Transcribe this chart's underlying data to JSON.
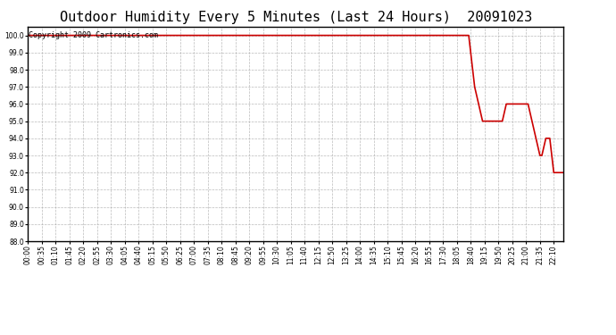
{
  "title": "Outdoor Humidity Every 5 Minutes (Last 24 Hours)  20091023",
  "copyright_text": "Copyright 2009 Cartronics.com",
  "line_color": "#cc0000",
  "bg_color": "#ffffff",
  "plot_bg_color": "#ffffff",
  "grid_color": "#aaaaaa",
  "ylim": [
    88.0,
    100.5
  ],
  "yticks": [
    88.0,
    89.0,
    90.0,
    91.0,
    92.0,
    93.0,
    94.0,
    95.0,
    96.0,
    97.0,
    98.0,
    99.0,
    100.0
  ],
  "title_fontsize": 11,
  "copyright_fontsize": 6,
  "tick_label_fontsize": 5.5,
  "line_width": 1.2,
  "values": [
    100,
    100,
    100,
    100,
    100,
    100,
    100,
    100,
    100,
    100,
    100,
    100,
    100,
    100,
    100,
    100,
    100,
    100,
    100,
    100,
    100,
    100,
    100,
    100,
    100,
    100,
    100,
    100,
    100,
    100,
    100,
    100,
    100,
    100,
    100,
    100,
    100,
    100,
    100,
    100,
    100,
    100,
    100,
    100,
    100,
    100,
    100,
    100,
    100,
    100,
    100,
    100,
    100,
    100,
    100,
    100,
    100,
    100,
    100,
    100,
    100,
    100,
    100,
    100,
    100,
    100,
    100,
    100,
    100,
    100,
    100,
    100,
    100,
    100,
    100,
    100,
    100,
    100,
    100,
    100,
    100,
    100,
    100,
    100,
    100,
    100,
    100,
    100,
    100,
    100,
    100,
    100,
    100,
    100,
    100,
    100,
    100,
    100,
    100,
    100,
    100,
    100,
    100,
    100,
    100,
    100,
    100,
    100,
    100,
    100,
    100,
    100,
    100,
    100,
    100,
    100,
    100,
    100,
    100,
    100,
    100,
    100,
    100,
    100,
    100,
    100,
    100,
    100,
    100,
    100,
    100,
    100,
    100,
    100,
    100,
    100,
    100,
    100,
    100,
    100,
    100,
    100,
    100,
    100,
    100,
    100,
    100,
    100,
    100,
    100,
    100,
    100,
    100,
    100,
    100,
    100,
    100,
    100,
    100,
    100,
    100,
    100,
    100,
    100,
    100,
    100,
    100,
    100,
    100,
    100,
    100,
    100,
    100,
    100,
    100,
    100,
    100,
    100,
    100,
    100,
    100,
    100,
    100,
    100,
    100,
    100,
    100,
    100,
    100,
    100,
    100,
    100,
    100,
    100,
    100,
    100,
    100,
    100,
    100,
    100,
    100,
    100,
    100,
    100,
    100,
    100,
    100,
    100,
    100,
    100,
    100,
    100,
    100,
    100,
    100,
    100,
    100,
    100,
    100,
    100,
    100,
    100,
    100,
    100,
    99,
    98,
    97,
    96.5,
    96,
    95.5,
    95,
    95,
    95,
    95,
    95,
    95,
    95,
    95,
    95,
    95,
    95,
    95.5,
    96,
    96,
    96,
    96,
    96,
    96,
    96,
    96,
    96,
    96,
    96,
    96,
    95.5,
    95,
    94.5,
    94,
    93.5,
    93,
    93,
    93.5,
    94,
    94,
    94,
    93,
    92,
    92,
    92,
    92,
    92,
    92
  ],
  "xtick_step": 7,
  "total_points": 288
}
